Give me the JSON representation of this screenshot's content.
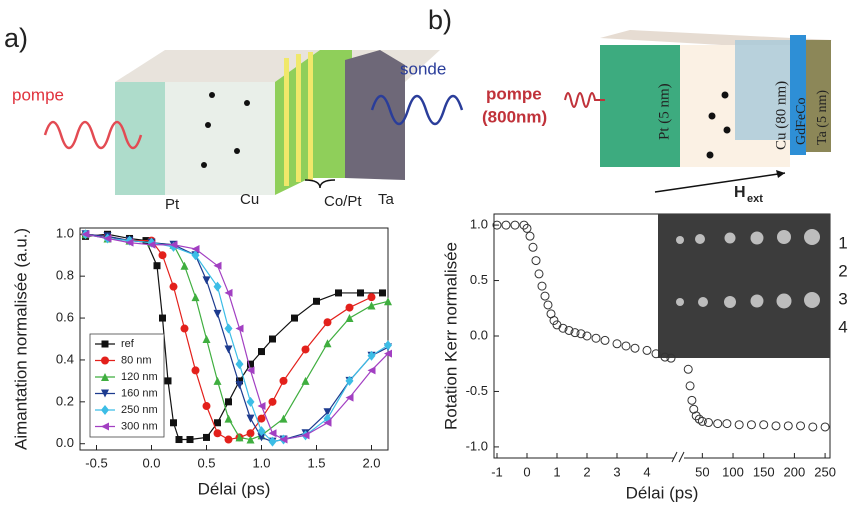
{
  "panel_labels": [
    "a)",
    "b)"
  ],
  "diagram_a": {
    "pump": "pompe",
    "probe": "sonde",
    "layers": [
      "Pt",
      "Cu",
      "Co/Pt",
      "Ta"
    ]
  },
  "diagram_b": {
    "pump": "pompe",
    "wavelength": "(800nm)",
    "layers": [
      "Pt (5 nm)",
      "Cu (80 nm)",
      "GdFeCo",
      "Ta (5 nm)"
    ],
    "field": "H",
    "field_sub": "ext"
  },
  "chart_data": [
    {
      "type": "line",
      "xlabel": "Délai (ps)",
      "ylabel": "Aimantation normalisée (a.u.)",
      "xlim": [
        -0.65,
        2.15
      ],
      "xticks": [
        -0.5,
        {
          "value": 0,
          "label": "0.0"
        },
        0.5,
        {
          "value": 1,
          "label": "1.0"
        },
        1.5,
        {
          "value": 2,
          "label": "2.0"
        }
      ],
      "ylim": [
        -0.03,
        1.03
      ],
      "yticks": [
        {
          "value": 0,
          "label": "0.0"
        },
        0.2,
        0.4,
        0.6,
        0.8,
        {
          "value": 1,
          "label": "1.0"
        }
      ],
      "legend": "lower left",
      "series": [
        {
          "name": "ref",
          "color": "#111111",
          "marker": "square",
          "x": [
            -0.6,
            -0.4,
            -0.2,
            -0.05,
            0.05,
            0.1,
            0.15,
            0.2,
            0.25,
            0.35,
            0.5,
            0.6,
            0.7,
            0.8,
            0.9,
            1.0,
            1.1,
            1.3,
            1.5,
            1.7,
            1.9,
            2.1
          ],
          "values": [
            0.99,
            1.0,
            0.98,
            0.97,
            0.85,
            0.6,
            0.3,
            0.1,
            0.02,
            0.02,
            0.03,
            0.1,
            0.2,
            0.3,
            0.38,
            0.44,
            0.5,
            0.6,
            0.68,
            0.72,
            0.72,
            0.72
          ]
        },
        {
          "name": "80 nm",
          "color": "#e3201b",
          "marker": "circle",
          "x": [
            -0.6,
            -0.4,
            -0.2,
            0,
            0.1,
            0.2,
            0.3,
            0.4,
            0.5,
            0.6,
            0.7,
            0.8,
            0.9,
            1.0,
            1.1,
            1.2,
            1.4,
            1.6,
            1.8,
            2.0
          ],
          "values": [
            1.0,
            0.99,
            0.97,
            0.97,
            0.9,
            0.75,
            0.55,
            0.35,
            0.18,
            0.05,
            0.02,
            0.03,
            0.05,
            0.12,
            0.2,
            0.3,
            0.45,
            0.58,
            0.65,
            0.7
          ]
        },
        {
          "name": "120 nm",
          "color": "#3fae3f",
          "marker": "triangle-up",
          "x": [
            -0.6,
            -0.4,
            -0.2,
            0,
            0.2,
            0.3,
            0.4,
            0.5,
            0.6,
            0.7,
            0.8,
            0.9,
            1.0,
            1.2,
            1.4,
            1.6,
            1.8,
            2.0,
            2.15
          ],
          "values": [
            1.0,
            0.98,
            0.97,
            0.96,
            0.95,
            0.85,
            0.7,
            0.5,
            0.3,
            0.12,
            0.03,
            0.02,
            0.04,
            0.12,
            0.3,
            0.48,
            0.6,
            0.66,
            0.68
          ]
        },
        {
          "name": "160 nm",
          "color": "#1d3b8f",
          "marker": "triangle-down",
          "x": [
            -0.6,
            -0.4,
            -0.2,
            0,
            0.2,
            0.4,
            0.5,
            0.6,
            0.7,
            0.8,
            0.9,
            1.0,
            1.1,
            1.2,
            1.4,
            1.6,
            1.8,
            2.0,
            2.15
          ],
          "values": [
            1.0,
            0.99,
            0.97,
            0.96,
            0.95,
            0.9,
            0.78,
            0.62,
            0.45,
            0.28,
            0.12,
            0.03,
            0.01,
            0.02,
            0.05,
            0.15,
            0.3,
            0.42,
            0.46
          ]
        },
        {
          "name": "250 nm",
          "color": "#3cbde6",
          "marker": "diamond",
          "x": [
            -0.6,
            -0.4,
            -0.2,
            0,
            0.2,
            0.4,
            0.6,
            0.7,
            0.8,
            0.9,
            1.0,
            1.1,
            1.2,
            1.4,
            1.6,
            1.8,
            2.0,
            2.15
          ],
          "values": [
            1.0,
            0.98,
            0.97,
            0.96,
            0.94,
            0.9,
            0.75,
            0.55,
            0.38,
            0.2,
            0.06,
            0.01,
            0.02,
            0.04,
            0.12,
            0.3,
            0.42,
            0.47
          ]
        },
        {
          "name": "300 nm",
          "color": "#a23fc2",
          "marker": "triangle-left",
          "x": [
            -0.6,
            -0.4,
            -0.2,
            0,
            0.2,
            0.4,
            0.6,
            0.7,
            0.8,
            0.9,
            1.0,
            1.1,
            1.2,
            1.4,
            1.6,
            1.8,
            2.0,
            2.15
          ],
          "values": [
            1.0,
            0.98,
            0.96,
            0.95,
            0.95,
            0.93,
            0.85,
            0.72,
            0.55,
            0.35,
            0.18,
            0.05,
            0.02,
            0.04,
            0.1,
            0.22,
            0.35,
            0.43
          ]
        }
      ]
    },
    {
      "type": "scatter",
      "xlabel": "Délai (ps)",
      "ylabel": "Rotation Kerr normalisée",
      "segments": [
        {
          "xlim": [
            -1.1,
            5
          ],
          "xticks": [
            -1,
            0,
            1,
            2,
            3,
            4
          ]
        },
        {
          "xlim": [
            25,
            258
          ],
          "xticks": [
            50,
            100,
            150,
            200,
            250
          ]
        }
      ],
      "ylim": [
        -1.1,
        1.1
      ],
      "yticks": [
        {
          "value": -1,
          "label": "-1.0"
        },
        -0.5,
        {
          "value": 0,
          "label": "0.0"
        },
        0.5,
        {
          "value": 1,
          "label": "1.0"
        }
      ],
      "color": "#333333",
      "marker": "open-circle",
      "x": [
        -1,
        -0.7,
        -0.4,
        -0.1,
        0,
        0.1,
        0.2,
        0.3,
        0.4,
        0.5,
        0.6,
        0.7,
        0.8,
        0.9,
        1.0,
        1.2,
        1.4,
        1.6,
        1.8,
        2.0,
        2.3,
        2.6,
        3.0,
        3.3,
        3.6,
        4.0,
        4.3,
        4.6,
        4.8,
        27,
        30,
        33,
        36,
        40,
        45,
        50,
        60,
        75,
        90,
        110,
        130,
        150,
        170,
        190,
        210,
        230,
        250
      ],
      "values": [
        1,
        1,
        1,
        1,
        0.97,
        0.9,
        0.8,
        0.68,
        0.56,
        0.45,
        0.36,
        0.28,
        0.2,
        0.14,
        0.1,
        0.07,
        0.05,
        0.03,
        0.02,
        0.0,
        -0.02,
        -0.04,
        -0.07,
        -0.09,
        -0.11,
        -0.13,
        -0.16,
        -0.19,
        -0.2,
        -0.3,
        -0.45,
        -0.58,
        -0.66,
        -0.72,
        -0.75,
        -0.77,
        -0.78,
        -0.79,
        -0.79,
        -0.8,
        -0.8,
        -0.8,
        -0.81,
        -0.81,
        -0.81,
        -0.82,
        -0.82
      ],
      "inset_labels": [
        "1",
        "2",
        "3",
        "4"
      ]
    }
  ]
}
